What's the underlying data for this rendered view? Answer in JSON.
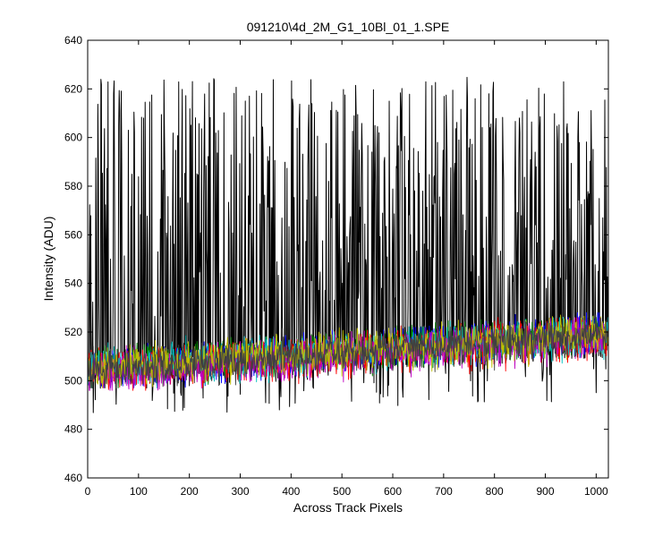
{
  "chart_data": {
    "type": "line",
    "title": "091210\\4d_2M_G1_10Bl_01_1.SPE",
    "xlabel": "Across Track Pixels",
    "ylabel": "Intensity (ADU)",
    "xlim": [
      0,
      1024
    ],
    "ylim": [
      460,
      640
    ],
    "xticks": [
      0,
      100,
      200,
      300,
      400,
      500,
      600,
      700,
      800,
      900,
      1000
    ],
    "yticks": [
      460,
      480,
      500,
      520,
      540,
      560,
      580,
      600,
      620,
      640
    ],
    "grid": false,
    "legend": "none",
    "series": [
      {
        "color": "#000000",
        "trend": {
          "x": [
            0,
            1024
          ],
          "y": [
            505,
            515
          ]
        },
        "noise_range": [
          485,
          625
        ]
      },
      {
        "color": "#0000ff",
        "trend": {
          "x": [
            0,
            1024
          ],
          "y": [
            503,
            520
          ]
        },
        "noise_range": [
          497,
          528
        ]
      },
      {
        "color": "#008000",
        "trend": {
          "x": [
            0,
            1024
          ],
          "y": [
            505,
            519
          ]
        },
        "noise_range": [
          497,
          527
        ]
      },
      {
        "color": "#ff0000",
        "trend": {
          "x": [
            0,
            1024
          ],
          "y": [
            504,
            518
          ]
        },
        "noise_range": [
          496,
          526
        ]
      },
      {
        "color": "#00bfbf",
        "trend": {
          "x": [
            0,
            1024
          ],
          "y": [
            505,
            519
          ]
        },
        "noise_range": [
          497,
          527
        ]
      },
      {
        "color": "#bf00bf",
        "trend": {
          "x": [
            0,
            1024
          ],
          "y": [
            503,
            518
          ]
        },
        "noise_range": [
          496,
          526
        ]
      },
      {
        "color": "#bfbf00",
        "trend": {
          "x": [
            0,
            1024
          ],
          "y": [
            505,
            519
          ]
        },
        "noise_range": [
          497,
          527
        ]
      },
      {
        "color": "#404040",
        "trend": {
          "x": [
            0,
            1024
          ],
          "y": [
            504,
            519
          ]
        },
        "noise_range": [
          497,
          527
        ]
      }
    ]
  }
}
